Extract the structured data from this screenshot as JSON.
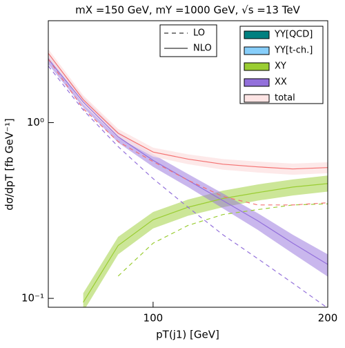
{
  "chart_data": {
    "type": "line",
    "log_y": true,
    "title": "mX =150 GeV, mY =1000 GeV, √s =13 TeV",
    "x_label": "pT(j1) [GeV]",
    "y_label": "dσ/dpT [fb GeV⁻¹]",
    "xlim": [
      40,
      200
    ],
    "ylim": [
      0.089,
      3.8
    ],
    "xticks": [
      100,
      200
    ],
    "yticks": [
      {
        "value": 1,
        "label": "10⁰"
      },
      {
        "value": 0.1,
        "label": "10⁻¹"
      }
    ],
    "x": [
      40,
      60,
      80,
      100,
      120,
      140,
      160,
      180,
      200
    ],
    "line_styles": [
      {
        "name": "LO",
        "dashed": true
      },
      {
        "name": "NLO",
        "dashed": false
      }
    ],
    "series": [
      {
        "name": "YY[QCD]",
        "color": "#008080"
      },
      {
        "name": "YY[t-ch.]",
        "color": "#87cefa"
      },
      {
        "name": "XY",
        "color": "#9acd32",
        "nlo": [
          null,
          0.095,
          0.2,
          0.28,
          0.33,
          0.37,
          0.4,
          0.43,
          0.45
        ],
        "lo": [
          null,
          null,
          0.134,
          0.206,
          0.26,
          0.3,
          0.32,
          0.34,
          0.345
        ],
        "lower": [
          null,
          0.084,
          0.178,
          0.25,
          0.295,
          0.33,
          0.36,
          0.385,
          0.405
        ],
        "upper": [
          null,
          0.107,
          0.224,
          0.31,
          0.365,
          0.41,
          0.445,
          0.475,
          0.5
        ]
      },
      {
        "name": "XX",
        "color": "#9370db",
        "nlo": [
          2.3,
          1.31,
          0.83,
          0.61,
          0.47,
          0.36,
          0.276,
          0.206,
          0.156
        ],
        "lo": [
          2.1,
          1.18,
          0.73,
          0.48,
          0.33,
          0.23,
          0.168,
          0.122,
          0.088
        ],
        "lower": [
          2.15,
          1.22,
          0.77,
          0.56,
          0.43,
          0.325,
          0.245,
          0.18,
          0.133
        ],
        "upper": [
          2.45,
          1.4,
          0.89,
          0.66,
          0.51,
          0.395,
          0.305,
          0.23,
          0.178
        ]
      },
      {
        "name": "total",
        "color": "#f47070",
        "band_color": "#fde4e4",
        "nlo": [
          2.48,
          1.35,
          0.87,
          0.68,
          0.62,
          0.58,
          0.56,
          0.545,
          0.555
        ],
        "lo": [
          2.3,
          1.2,
          0.78,
          0.6,
          0.47,
          0.38,
          0.34,
          0.34,
          0.35
        ],
        "lower": [
          2.35,
          1.27,
          0.82,
          0.64,
          0.58,
          0.54,
          0.52,
          0.505,
          0.515
        ],
        "upper": [
          2.62,
          1.43,
          0.92,
          0.72,
          0.66,
          0.62,
          0.6,
          0.585,
          0.595
        ]
      }
    ]
  }
}
